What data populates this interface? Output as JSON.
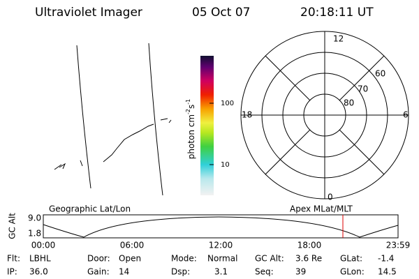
{
  "header": {
    "instrument": "Ultraviolet Imager",
    "date": "05 Oct 07",
    "time": "20:18:11 UT"
  },
  "colorbar": {
    "label_parts": [
      "photon cm",
      "-2",
      "s",
      "-1"
    ],
    "ticks": [
      "100",
      "10"
    ]
  },
  "polar": {
    "labels": [
      "12",
      "60",
      "70",
      "80",
      "18",
      "6",
      "0"
    ]
  },
  "orbit": {
    "left_title": "Geographic Lat/Lon",
    "right_title": "Apex MLat/MLT",
    "y_label": "GC Alt",
    "yticks": [
      "9.0",
      "1.8"
    ],
    "xticks": [
      "00:00",
      "06:00",
      "12:00",
      "18:00",
      "23:59"
    ]
  },
  "info": [
    [
      {
        "label": "Flt:",
        "value": "LBHL"
      },
      {
        "label": "Door:",
        "value": "Open"
      },
      {
        "label": "Mode:",
        "value": "Normal"
      },
      {
        "label": "GC Alt:",
        "value": "3.6 Re"
      },
      {
        "label": "GLat:",
        "value": "-1.4"
      }
    ],
    [
      {
        "label": "IP:",
        "value": "36.0"
      },
      {
        "label": "Gain:",
        "value": "14"
      },
      {
        "label": "Dsp:",
        "value": "3.1"
      },
      {
        "label": "Seq:",
        "value": "39"
      },
      {
        "label": "GLon:",
        "value": "14.5"
      }
    ]
  ]
}
